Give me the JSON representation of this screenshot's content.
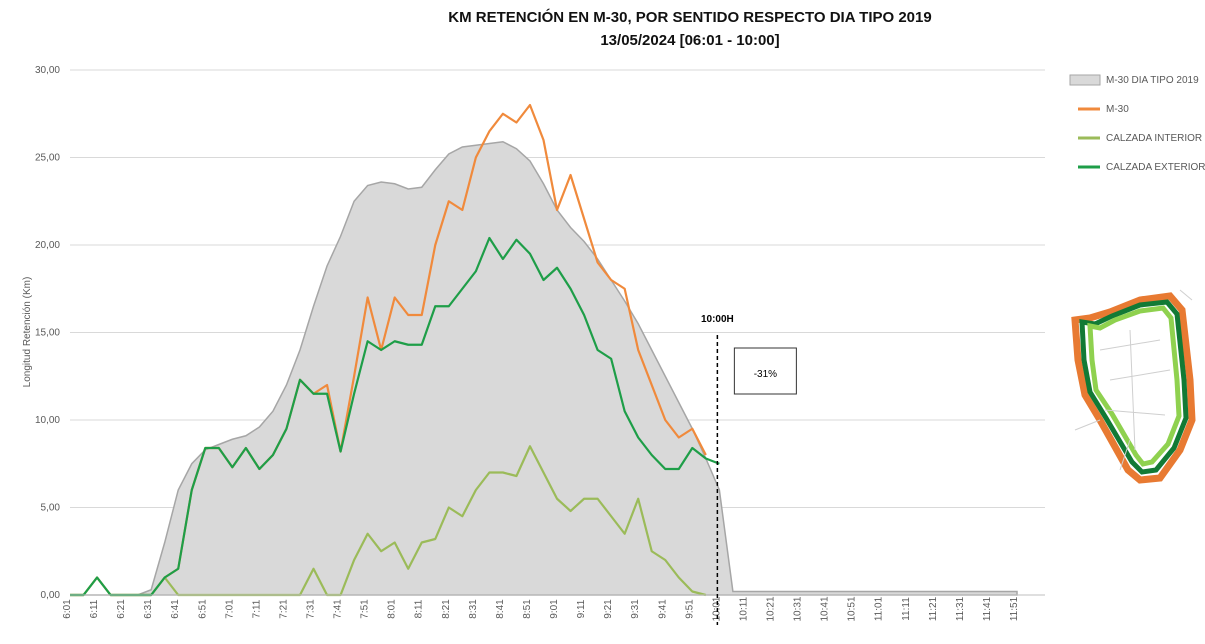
{
  "chart_data": {
    "type": "line",
    "title": "KM RETENCIÓN EN M-30, POR SENTIDO RESPECTO DIA TIPO 2019",
    "subtitle": "13/05/2024    [06:01 - 10:00]",
    "y_label": "Longitud Retención (Km)",
    "categories": [
      "6:01",
      null,
      "6:11",
      null,
      "6:21",
      null,
      "6:31",
      null,
      "6:41",
      null,
      "6:51",
      null,
      "7:01",
      null,
      "7:11",
      null,
      "7:21",
      null,
      "7:31",
      null,
      "7:41",
      null,
      "7:51",
      null,
      "8:01",
      null,
      "8:11",
      null,
      "8:21",
      null,
      "8:31",
      null,
      "8:41",
      null,
      "8:51",
      null,
      "9:01",
      null,
      "9:11",
      null,
      "9:21",
      null,
      "9:31",
      null,
      "9:41",
      null,
      "9:51",
      null,
      "10:01",
      null,
      "10:11",
      null,
      "10:21",
      null,
      "10:31",
      null,
      "10:41",
      null,
      "10:51",
      null,
      "11:01",
      null,
      "11:11",
      null,
      "11:21",
      null,
      "11:31",
      null,
      "11:41",
      null,
      "11:51"
    ],
    "series": [
      {
        "name": "M-30 DIA TIPO 2019",
        "kind": "area",
        "color": "#d9d9d9",
        "edge": "#a6a6a6",
        "values": [
          0,
          0,
          0,
          0,
          0,
          0,
          0.3,
          3,
          6,
          7.5,
          8.3,
          8.6,
          8.9,
          9.1,
          9.6,
          10.5,
          12,
          14,
          16.5,
          18.8,
          20.5,
          22.5,
          23.4,
          23.6,
          23.5,
          23.2,
          23.3,
          24.3,
          25.2,
          25.6,
          25.7,
          25.8,
          25.9,
          25.5,
          24.8,
          23.5,
          22,
          21,
          20.2,
          19.2,
          18,
          16.8,
          15.5,
          14,
          12.5,
          11,
          9.5,
          7.8,
          6,
          0.2,
          0.2,
          0.2,
          0.2,
          0.2,
          0.2,
          0.2,
          0.2,
          0.2,
          0.2,
          0.2,
          0.2,
          0.2,
          0.2,
          0.2,
          0.2,
          0.2,
          0.2,
          0.2,
          0.2,
          0.2,
          0.2
        ]
      },
      {
        "name": "M-30",
        "kind": "line",
        "color": "#f08a3c",
        "values": [
          0,
          0,
          1,
          0,
          0,
          0,
          0,
          1,
          1.5,
          6,
          8.4,
          8.4,
          7.3,
          8.4,
          7.2,
          8,
          9.5,
          12.3,
          11.5,
          12,
          8.2,
          12.5,
          17,
          14,
          17,
          16,
          16,
          20,
          22.5,
          22,
          25,
          26.5,
          27.5,
          27,
          28,
          26,
          22,
          24,
          21.5,
          19,
          18,
          17.5,
          14,
          12,
          10,
          9,
          9.5,
          8,
          null,
          null,
          null,
          null,
          null,
          null,
          null,
          null,
          null,
          null,
          null,
          null,
          null,
          null,
          null,
          null,
          null,
          null,
          null,
          null,
          null,
          null,
          null
        ]
      },
      {
        "name": "CALZADA INTERIOR",
        "kind": "line",
        "color": "#9bbb59",
        "values": [
          0,
          0,
          1,
          0,
          0,
          0,
          0,
          1,
          0,
          0,
          0,
          0,
          0,
          0,
          0,
          0,
          0,
          0,
          1.5,
          0,
          0,
          2,
          3.5,
          2.5,
          3,
          1.5,
          3,
          3.2,
          5,
          4.5,
          6,
          7,
          7,
          6.8,
          8.5,
          7,
          5.5,
          4.8,
          5.5,
          5.5,
          4.5,
          3.5,
          5.5,
          2.5,
          2,
          1,
          0.2,
          0,
          null,
          null,
          null,
          null,
          null,
          null,
          null,
          null,
          null,
          null,
          null,
          null,
          null,
          null,
          null,
          null,
          null,
          null,
          null,
          null,
          null,
          null,
          null
        ]
      },
      {
        "name": "CALZADA EXTERIOR",
        "kind": "line",
        "color": "#1e9e48",
        "values": [
          0,
          0,
          1,
          0,
          0,
          0,
          0,
          1,
          1.5,
          6,
          8.4,
          8.4,
          7.3,
          8.4,
          7.2,
          8,
          9.5,
          12.3,
          11.5,
          11.5,
          8.2,
          11.5,
          14.5,
          14,
          14.5,
          14.3,
          14.3,
          16.5,
          16.5,
          17.5,
          18.5,
          20.4,
          19.2,
          20.3,
          19.5,
          18,
          18.7,
          17.5,
          16,
          14,
          13.5,
          10.5,
          9,
          8,
          7.2,
          7.2,
          8.4,
          7.8,
          7.5,
          null,
          null,
          null,
          null,
          null,
          null,
          null,
          null,
          null,
          null,
          null,
          null,
          null,
          null,
          null,
          null,
          null,
          null,
          null,
          null,
          null,
          null
        ]
      }
    ],
    "ylim": [
      0,
      30
    ],
    "yticks": [
      {
        "value": 0,
        "label": "0,00"
      },
      {
        "value": 5,
        "label": "5,00"
      },
      {
        "value": 10,
        "label": "10,00"
      },
      {
        "value": 15,
        "label": "15,00"
      },
      {
        "value": 20,
        "label": "20,00"
      },
      {
        "value": 25,
        "label": "25,00"
      },
      {
        "value": 30,
        "label": "30,00"
      }
    ],
    "grid": true,
    "legend": "right",
    "annotations": [
      "10:00H",
      "-31%"
    ]
  }
}
